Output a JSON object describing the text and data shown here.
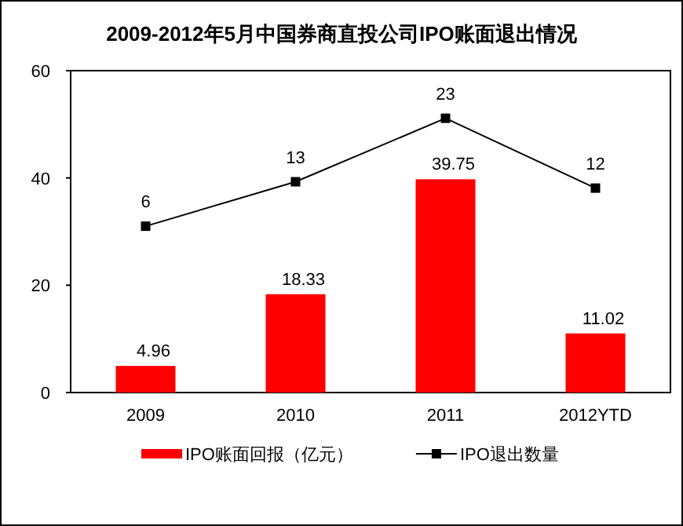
{
  "chart_data": {
    "type": "bar",
    "title": "2009-2012年5月中国券商直投公司IPO账面退出情况",
    "categories": [
      "2009",
      "2010",
      "2011",
      "2012YTD"
    ],
    "series": [
      {
        "name": "IPO账面回报（亿元）",
        "color": "#ff0000",
        "values": [
          4.96,
          18.33,
          39.75,
          11.02
        ]
      },
      {
        "name": "IPO退出数量",
        "type": "line",
        "axis": "y2",
        "color": "#000000",
        "marker": "square",
        "values": [
          6,
          13,
          23,
          12
        ]
      }
    ],
    "ylim": [
      0,
      60
    ],
    "yticks": [
      0,
      20,
      40,
      60
    ],
    "y2lim": [
      -20.2,
      30.5
    ],
    "data_labels": true,
    "grid": false,
    "legend": "bottom"
  }
}
